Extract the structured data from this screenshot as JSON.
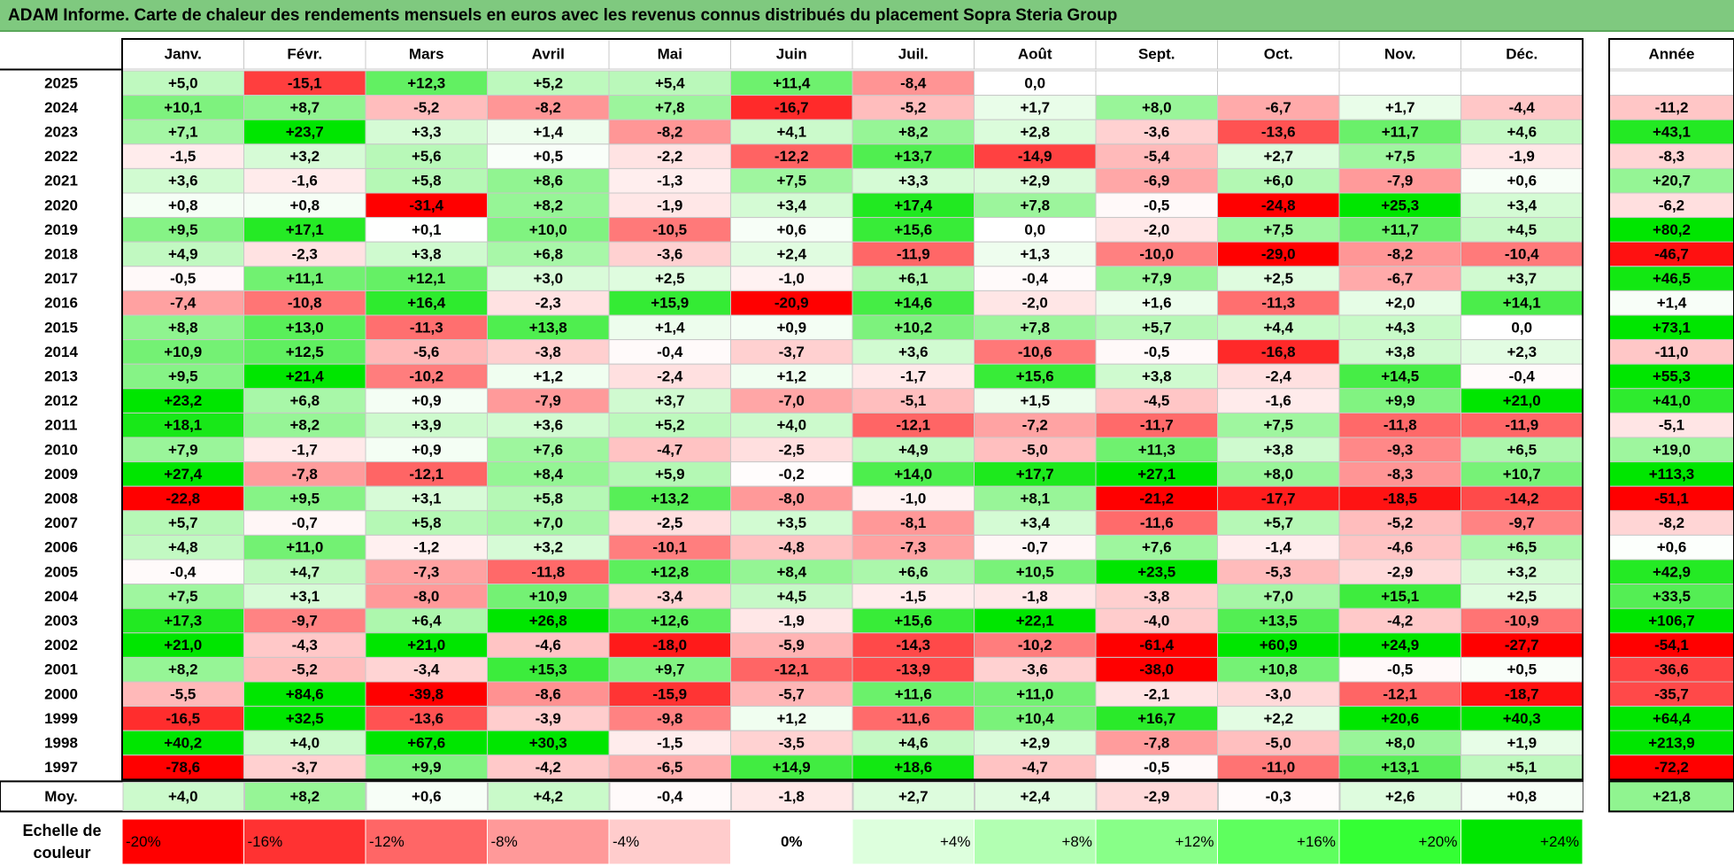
{
  "title": "ADAM Informe. Carte de chaleur des rendements mensuels en euros avec les revenus connus distribués du placement Sopra Steria Group",
  "chart_data": {
    "type": "heatmap",
    "title": "ADAM Informe. Carte de chaleur des rendements mensuels en euros avec les revenus connus distribués du placement Sopra Steria Group",
    "columns": [
      "Janv.",
      "Févr.",
      "Mars",
      "Avril",
      "Mai",
      "Juin",
      "Juil.",
      "Août",
      "Sept.",
      "Oct.",
      "Nov.",
      "Déc."
    ],
    "year_column_label": "Année",
    "rows": [
      {
        "year": "2025",
        "months": [
          "+5,0",
          "-15,1",
          "+12,3",
          "+5,2",
          "+5,4",
          "+11,4",
          "-8,4",
          "0,0",
          "",
          "",
          "",
          ""
        ],
        "annual": ""
      },
      {
        "year": "2024",
        "months": [
          "+10,1",
          "+8,7",
          "-5,2",
          "-8,2",
          "+7,8",
          "-16,7",
          "-5,2",
          "+1,7",
          "+8,0",
          "-6,7",
          "+1,7",
          "-4,4"
        ],
        "annual": "-11,2"
      },
      {
        "year": "2023",
        "months": [
          "+7,1",
          "+23,7",
          "+3,3",
          "+1,4",
          "-8,2",
          "+4,1",
          "+8,2",
          "+2,8",
          "-3,6",
          "-13,6",
          "+11,7",
          "+4,6"
        ],
        "annual": "+43,1"
      },
      {
        "year": "2022",
        "months": [
          "-1,5",
          "+3,2",
          "+5,6",
          "+0,5",
          "-2,2",
          "-12,2",
          "+13,7",
          "-14,9",
          "-5,4",
          "+2,7",
          "+7,5",
          "-1,9"
        ],
        "annual": "-8,3"
      },
      {
        "year": "2021",
        "months": [
          "+3,6",
          "-1,6",
          "+5,8",
          "+8,6",
          "-1,3",
          "+7,5",
          "+3,3",
          "+2,9",
          "-6,9",
          "+6,0",
          "-7,9",
          "+0,6"
        ],
        "annual": "+20,7"
      },
      {
        "year": "2020",
        "months": [
          "+0,8",
          "+0,8",
          "-31,4",
          "+8,2",
          "-1,9",
          "+3,4",
          "+17,4",
          "+7,8",
          "-0,5",
          "-24,8",
          "+25,3",
          "+3,4"
        ],
        "annual": "-6,2"
      },
      {
        "year": "2019",
        "months": [
          "+9,5",
          "+17,1",
          "+0,1",
          "+10,0",
          "-10,5",
          "+0,6",
          "+15,6",
          "0,0",
          "-2,0",
          "+7,5",
          "+11,7",
          "+4,5"
        ],
        "annual": "+80,2"
      },
      {
        "year": "2018",
        "months": [
          "+4,9",
          "-2,3",
          "+3,8",
          "+6,8",
          "-3,6",
          "+2,4",
          "-11,9",
          "+1,3",
          "-10,0",
          "-29,0",
          "-8,2",
          "-10,4"
        ],
        "annual": "-46,7"
      },
      {
        "year": "2017",
        "months": [
          "-0,5",
          "+11,1",
          "+12,1",
          "+3,0",
          "+2,5",
          "-1,0",
          "+6,1",
          "-0,4",
          "+7,9",
          "+2,5",
          "-6,7",
          "+3,7"
        ],
        "annual": "+46,5"
      },
      {
        "year": "2016",
        "months": [
          "-7,4",
          "-10,8",
          "+16,4",
          "-2,3",
          "+15,9",
          "-20,9",
          "+14,6",
          "-2,0",
          "+1,6",
          "-11,3",
          "+2,0",
          "+14,1"
        ],
        "annual": "+1,4"
      },
      {
        "year": "2015",
        "months": [
          "+8,8",
          "+13,0",
          "-11,3",
          "+13,8",
          "+1,4",
          "+0,9",
          "+10,2",
          "+7,8",
          "+5,7",
          "+4,4",
          "+4,3",
          "0,0"
        ],
        "annual": "+73,1"
      },
      {
        "year": "2014",
        "months": [
          "+10,9",
          "+12,5",
          "-5,6",
          "-3,8",
          "-0,4",
          "-3,7",
          "+3,6",
          "-10,6",
          "-0,5",
          "-16,8",
          "+3,8",
          "+2,3"
        ],
        "annual": "-11,0"
      },
      {
        "year": "2013",
        "months": [
          "+9,5",
          "+21,4",
          "-10,2",
          "+1,2",
          "-2,4",
          "+1,2",
          "-1,7",
          "+15,6",
          "+3,8",
          "-2,4",
          "+14,5",
          "-0,4"
        ],
        "annual": "+55,3"
      },
      {
        "year": "2012",
        "months": [
          "+23,2",
          "+6,8",
          "+0,9",
          "-7,9",
          "+3,7",
          "-7,0",
          "-5,1",
          "+1,5",
          "-4,5",
          "-1,6",
          "+9,9",
          "+21,0"
        ],
        "annual": "+41,0"
      },
      {
        "year": "2011",
        "months": [
          "+18,1",
          "+8,2",
          "+3,9",
          "+3,6",
          "+5,2",
          "+4,0",
          "-12,1",
          "-7,2",
          "-11,7",
          "+7,5",
          "-11,8",
          "-11,9"
        ],
        "annual": "-5,1"
      },
      {
        "year": "2010",
        "months": [
          "+7,9",
          "-1,7",
          "+0,9",
          "+7,6",
          "-4,7",
          "-2,5",
          "+4,9",
          "-5,0",
          "+11,3",
          "+3,8",
          "-9,3",
          "+6,5"
        ],
        "annual": "+19,0"
      },
      {
        "year": "2009",
        "months": [
          "+27,4",
          "-7,8",
          "-12,1",
          "+8,4",
          "+5,9",
          "-0,2",
          "+14,0",
          "+17,7",
          "+27,1",
          "+8,0",
          "-8,3",
          "+10,7"
        ],
        "annual": "+113,3"
      },
      {
        "year": "2008",
        "months": [
          "-22,8",
          "+9,5",
          "+3,1",
          "+5,8",
          "+13,2",
          "-8,0",
          "-1,0",
          "+8,1",
          "-21,2",
          "-17,7",
          "-18,5",
          "-14,2"
        ],
        "annual": "-51,1"
      },
      {
        "year": "2007",
        "months": [
          "+5,7",
          "-0,7",
          "+5,8",
          "+7,0",
          "-2,5",
          "+3,5",
          "-8,1",
          "+3,4",
          "-11,6",
          "+5,7",
          "-5,2",
          "-9,7"
        ],
        "annual": "-8,2"
      },
      {
        "year": "2006",
        "months": [
          "+4,8",
          "+11,0",
          "-1,2",
          "+3,2",
          "-10,1",
          "-4,8",
          "-7,3",
          "-0,7",
          "+7,6",
          "-1,4",
          "-4,6",
          "+6,5"
        ],
        "annual": "+0,6"
      },
      {
        "year": "2005",
        "months": [
          "-0,4",
          "+4,7",
          "-7,3",
          "-11,8",
          "+12,8",
          "+8,4",
          "+6,6",
          "+10,5",
          "+23,5",
          "-5,3",
          "-2,9",
          "+3,2"
        ],
        "annual": "+42,9"
      },
      {
        "year": "2004",
        "months": [
          "+7,5",
          "+3,1",
          "-8,0",
          "+10,9",
          "-3,4",
          "+4,5",
          "-1,5",
          "-1,8",
          "-3,8",
          "+7,0",
          "+15,1",
          "+2,5"
        ],
        "annual": "+33,5"
      },
      {
        "year": "2003",
        "months": [
          "+17,3",
          "-9,7",
          "+6,4",
          "+26,8",
          "+12,6",
          "-1,9",
          "+15,6",
          "+22,1",
          "-4,0",
          "+13,5",
          "-4,2",
          "-10,9"
        ],
        "annual": "+106,7"
      },
      {
        "year": "2002",
        "months": [
          "+21,0",
          "-4,3",
          "+21,0",
          "-4,6",
          "-18,0",
          "-5,9",
          "-14,3",
          "-10,2",
          "-61,4",
          "+60,9",
          "+24,9",
          "-27,7"
        ],
        "annual": "-54,1"
      },
      {
        "year": "2001",
        "months": [
          "+8,2",
          "-5,2",
          "-3,4",
          "+15,3",
          "+9,7",
          "-12,1",
          "-13,9",
          "-3,6",
          "-38,0",
          "+10,8",
          "-0,5",
          "+0,5"
        ],
        "annual": "-36,6"
      },
      {
        "year": "2000",
        "months": [
          "-5,5",
          "+84,6",
          "-39,8",
          "-8,6",
          "-15,9",
          "-5,7",
          "+11,6",
          "+11,0",
          "-2,1",
          "-3,0",
          "-12,1",
          "-18,7"
        ],
        "annual": "-35,7"
      },
      {
        "year": "1999",
        "months": [
          "-16,5",
          "+32,5",
          "-13,6",
          "-3,9",
          "-9,8",
          "+1,2",
          "-11,6",
          "+10,4",
          "+16,7",
          "+2,2",
          "+20,6",
          "+40,3"
        ],
        "annual": "+64,4"
      },
      {
        "year": "1998",
        "months": [
          "+40,2",
          "+4,0",
          "+67,6",
          "+30,3",
          "-1,5",
          "-3,5",
          "+4,6",
          "+2,9",
          "-7,8",
          "-5,0",
          "+8,0",
          "+1,9"
        ],
        "annual": "+213,9"
      },
      {
        "year": "1997",
        "months": [
          "-78,6",
          "-3,7",
          "+9,9",
          "-4,2",
          "-6,5",
          "+14,9",
          "+18,6",
          "-4,7",
          "-0,5",
          "-11,0",
          "+13,1",
          "+5,1"
        ],
        "annual": "-72,2"
      }
    ],
    "average": {
      "label": "Moy.",
      "months": [
        "+4,0",
        "+8,2",
        "+0,6",
        "+4,2",
        "-0,4",
        "-1,8",
        "+2,7",
        "+2,4",
        "-2,9",
        "-0,3",
        "+2,6",
        "+0,8"
      ],
      "annual": "+21,8"
    },
    "color_scale": {
      "label_line1": "Echelle de",
      "label_line2": "couleur",
      "stops": [
        {
          "label": "-20%",
          "value": -20,
          "color": "#ff0000"
        },
        {
          "label": "-16%",
          "value": -16,
          "color": "#ff3232"
        },
        {
          "label": "-12%",
          "value": -12,
          "color": "#ff6666"
        },
        {
          "label": "-8%",
          "value": -8,
          "color": "#ff9999"
        },
        {
          "label": "-4%",
          "value": -4,
          "color": "#ffcccc"
        },
        {
          "label": "0%",
          "value": 0,
          "color": "#ffffff"
        },
        {
          "label": "+4%",
          "value": 4,
          "color": "#ddffdd"
        },
        {
          "label": "+8%",
          "value": 8,
          "color": "#b2ffb2"
        },
        {
          "label": "+12%",
          "value": 12,
          "color": "#88ff88"
        },
        {
          "label": "+16%",
          "value": 16,
          "color": "#5eff5e"
        },
        {
          "label": "+20%",
          "value": 20,
          "color": "#34ff34"
        },
        {
          "label": "+24%",
          "value": 24,
          "color": "#00e600"
        }
      ]
    },
    "colors": {
      "title_bar": "#7fc97f",
      "positive": "#00e600",
      "negative": "#ff0000",
      "neutral": "#ffffff"
    }
  }
}
